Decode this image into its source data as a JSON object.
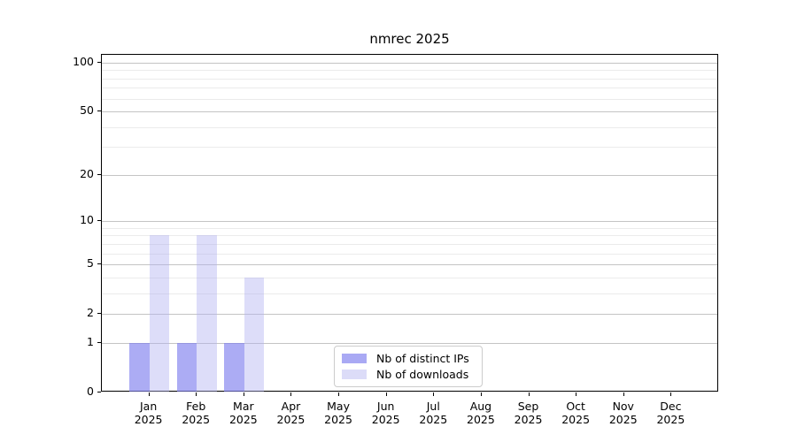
{
  "chart_data": {
    "type": "bar",
    "title": "nmrec 2025",
    "categories": [
      "Jan",
      "Feb",
      "Mar",
      "Apr",
      "May",
      "Jun",
      "Jul",
      "Aug",
      "Sep",
      "Oct",
      "Nov",
      "Dec"
    ],
    "year": "2025",
    "series": [
      {
        "name": "Nb of distinct IPs",
        "color": "#a9a9f4",
        "fill": "rgba(124,124,238,0.63)",
        "values": [
          1,
          1,
          1,
          0,
          0,
          0,
          0,
          0,
          0,
          0,
          0,
          0
        ]
      },
      {
        "name": "Nb of downloads",
        "color": "#dcdcf8",
        "fill": "rgba(173,173,240,0.42)",
        "values": [
          8,
          8,
          4,
          0,
          0,
          0,
          0,
          0,
          0,
          0,
          0,
          0
        ]
      }
    ],
    "xlabel": "",
    "ylabel": "",
    "yscale": "log10(1+value)",
    "ylim": [
      0,
      112
    ],
    "y_major_ticks": [
      0,
      1,
      2,
      5,
      10,
      20,
      50,
      100
    ],
    "y_minor_gridlines": [
      3,
      4,
      6,
      7,
      8,
      9,
      30,
      40,
      60,
      70,
      80,
      90
    ],
    "grid": "horizontal",
    "legend_position": "lower center",
    "grid_major_color": "#c4c4c4",
    "grid_minor_color": "#ebebeb"
  }
}
